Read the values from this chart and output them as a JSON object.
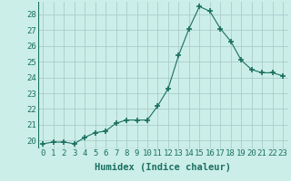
{
  "x": [
    0,
    1,
    2,
    3,
    4,
    5,
    6,
    7,
    8,
    9,
    10,
    11,
    12,
    13,
    14,
    15,
    16,
    17,
    18,
    19,
    20,
    21,
    22,
    23
  ],
  "y": [
    19.8,
    19.9,
    19.9,
    19.8,
    20.2,
    20.5,
    20.6,
    21.1,
    21.3,
    21.3,
    21.3,
    22.2,
    23.3,
    25.4,
    27.1,
    28.5,
    28.2,
    27.1,
    26.3,
    25.1,
    24.5,
    24.3,
    24.3,
    24.1
  ],
  "line_color": "#1a7060",
  "marker": "+",
  "marker_size": 4,
  "bg_color": "#cceee8",
  "grid_color": "#aacccc",
  "xlabel": "Humidex (Indice chaleur)",
  "xlim": [
    -0.5,
    23.5
  ],
  "ylim": [
    19.5,
    28.8
  ],
  "yticks": [
    20,
    21,
    22,
    23,
    24,
    25,
    26,
    27,
    28
  ],
  "xtick_labels": [
    "0",
    "1",
    "2",
    "3",
    "4",
    "5",
    "6",
    "7",
    "8",
    "9",
    "10",
    "11",
    "12",
    "13",
    "14",
    "15",
    "16",
    "17",
    "18",
    "19",
    "20",
    "21",
    "22",
    "23"
  ],
  "xlabel_fontsize": 7.5,
  "tick_fontsize": 6.5
}
